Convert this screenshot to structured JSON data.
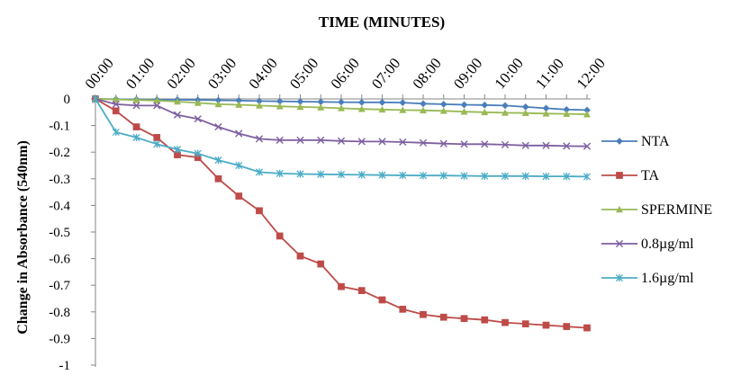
{
  "chart_data": {
    "type": "line",
    "title": "TIME (MINUTES)",
    "xlabel": "",
    "ylabel": "Change in Absorbance (540nm)",
    "x_tick_labels": [
      "00:00",
      "01:00",
      "02:00",
      "03:00",
      "04:00",
      "05:00",
      "06:00",
      "07:00",
      "08:00",
      "09:00",
      "10:00",
      "11:00",
      "12:00"
    ],
    "y_tick_labels": [
      "0",
      "-0.1",
      "-0.2",
      "-0.3",
      "-0.4",
      "-0.5",
      "-0.6",
      "-0.7",
      "-0.8",
      "-0.9",
      "-1"
    ],
    "x_axis_position": "top",
    "xlim": [
      0,
      12
    ],
    "ylim": [
      -1,
      0
    ],
    "grid": false,
    "legend_position": "right",
    "x": [
      0,
      0.5,
      1,
      1.5,
      2,
      2.5,
      3,
      3.5,
      4,
      4.5,
      5,
      5.5,
      6,
      6.5,
      7,
      7.5,
      8,
      8.5,
      9,
      9.5,
      10,
      10.5,
      11,
      11.5,
      12
    ],
    "series": [
      {
        "name": "NTA",
        "color": "#4A7EBB",
        "marker": "diamond",
        "values": [
          0,
          -0.001,
          -0.002,
          -0.003,
          -0.003,
          -0.004,
          -0.005,
          -0.006,
          -0.008,
          -0.009,
          -0.01,
          -0.011,
          -0.012,
          -0.013,
          -0.013,
          -0.014,
          -0.018,
          -0.02,
          -0.022,
          -0.023,
          -0.025,
          -0.03,
          -0.035,
          -0.04,
          -0.042
        ]
      },
      {
        "name": "TA",
        "color": "#BE4B48",
        "marker": "square",
        "values": [
          0,
          -0.045,
          -0.105,
          -0.145,
          -0.21,
          -0.22,
          -0.3,
          -0.365,
          -0.42,
          -0.515,
          -0.59,
          -0.62,
          -0.705,
          -0.72,
          -0.755,
          -0.79,
          -0.81,
          -0.82,
          -0.825,
          -0.83,
          -0.84,
          -0.845,
          -0.85,
          -0.855,
          -0.86
        ]
      },
      {
        "name": "SPERMINE",
        "color": "#98B954",
        "marker": "triangle",
        "values": [
          0,
          -0.002,
          -0.004,
          -0.006,
          -0.01,
          -0.015,
          -0.02,
          -0.022,
          -0.025,
          -0.028,
          -0.03,
          -0.032,
          -0.035,
          -0.038,
          -0.04,
          -0.042,
          -0.043,
          -0.045,
          -0.048,
          -0.05,
          -0.052,
          -0.053,
          -0.055,
          -0.056,
          -0.058
        ]
      },
      {
        "name": "0.8µg/ml",
        "color": "#7D5FA0",
        "marker": "x",
        "values": [
          0,
          -0.02,
          -0.025,
          -0.025,
          -0.06,
          -0.075,
          -0.105,
          -0.13,
          -0.15,
          -0.155,
          -0.155,
          -0.155,
          -0.158,
          -0.16,
          -0.16,
          -0.162,
          -0.165,
          -0.168,
          -0.17,
          -0.17,
          -0.172,
          -0.175,
          -0.175,
          -0.177,
          -0.178
        ]
      },
      {
        "name": "1.6µg/ml",
        "color": "#4BACC6",
        "marker": "star",
        "values": [
          0,
          -0.125,
          -0.145,
          -0.17,
          -0.19,
          -0.205,
          -0.23,
          -0.25,
          -0.275,
          -0.28,
          -0.282,
          -0.283,
          -0.284,
          -0.285,
          -0.286,
          -0.287,
          -0.288,
          -0.288,
          -0.289,
          -0.29,
          -0.29,
          -0.29,
          -0.291,
          -0.291,
          -0.292
        ]
      }
    ]
  }
}
